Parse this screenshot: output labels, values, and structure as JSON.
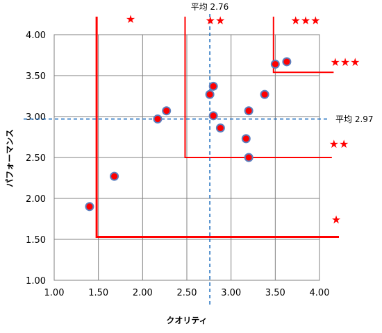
{
  "chart_data": {
    "type": "scatter",
    "xlabel": "クオリティ",
    "ylabel": "パフォーマンス",
    "xlim": [
      1.0,
      4.0
    ],
    "ylim": [
      1.0,
      4.0
    ],
    "x_ticks": [
      "1.00",
      "1.50",
      "2.00",
      "2.50",
      "3.00",
      "3.50",
      "4.00"
    ],
    "y_ticks": [
      "1.00",
      "1.50",
      "2.00",
      "2.50",
      "3.00",
      "3.50",
      "4.00"
    ],
    "grid": true,
    "points": [
      {
        "x": 1.4,
        "y": 1.9
      },
      {
        "x": 1.68,
        "y": 2.27
      },
      {
        "x": 2.17,
        "y": 2.97
      },
      {
        "x": 2.27,
        "y": 3.07
      },
      {
        "x": 2.76,
        "y": 3.27
      },
      {
        "x": 2.8,
        "y": 3.37
      },
      {
        "x": 2.8,
        "y": 3.01
      },
      {
        "x": 2.88,
        "y": 2.86
      },
      {
        "x": 3.17,
        "y": 2.73
      },
      {
        "x": 3.2,
        "y": 2.5
      },
      {
        "x": 3.2,
        "y": 3.07
      },
      {
        "x": 3.38,
        "y": 3.27
      },
      {
        "x": 3.5,
        "y": 3.64
      },
      {
        "x": 3.63,
        "y": 3.67
      }
    ],
    "point_fill": "#ff0000",
    "point_stroke": "#5b7fbf",
    "mean_lines": {
      "x": {
        "value": 2.76,
        "label": "平均 2.76"
      },
      "y": {
        "value": 2.97,
        "label": "平均 2.97"
      },
      "color": "#1f6fbf"
    },
    "threshold_color": "#ff0000",
    "star_color": "#ff0000",
    "star_labels": {
      "x_1": "★",
      "x_2": "★★",
      "x_3": "★★★",
      "y_3": "★★★",
      "y_2": "★★",
      "y_1": "★"
    }
  }
}
